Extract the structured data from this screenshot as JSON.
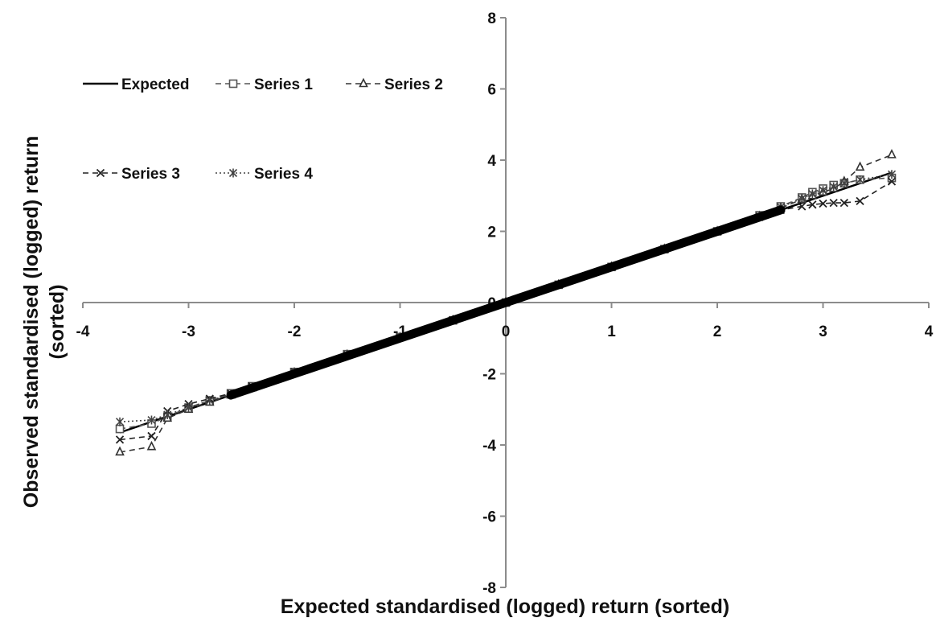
{
  "chart_data": {
    "type": "scatter",
    "title": "",
    "xlabel": "Expected standardised (logged) return (sorted)",
    "ylabel": [
      "Observed standardised (logged) return",
      "(sorted)"
    ],
    "xlim": [
      -4,
      4
    ],
    "ylim": [
      -8,
      8
    ],
    "x_ticks": [
      -4,
      -3,
      -2,
      -1,
      0,
      1,
      2,
      3,
      4
    ],
    "y_ticks": [
      -8,
      -6,
      -4,
      -2,
      0,
      2,
      4,
      6,
      8
    ],
    "grid": false,
    "legend_position": "top-left",
    "series": [
      {
        "name": "Expected",
        "line": "solid",
        "marker": "none",
        "color": "#000000",
        "x": [
          -3.65,
          3.65
        ],
        "y": [
          -3.65,
          3.65
        ]
      },
      {
        "name": "Series 1",
        "line": "dashed",
        "marker": "square",
        "color": "#555555",
        "x": [
          -3.65,
          -3.35,
          -3.2,
          -3.0,
          -2.8,
          -2.6,
          -2.4,
          -2.0,
          -1.5,
          -1.0,
          -0.5,
          0.0,
          0.5,
          1.0,
          1.5,
          2.0,
          2.4,
          2.6,
          2.8,
          2.9,
          3.0,
          3.1,
          3.2,
          3.35,
          3.65
        ],
        "y": [
          -3.55,
          -3.4,
          -3.2,
          -2.95,
          -2.75,
          -2.55,
          -2.35,
          -1.95,
          -1.45,
          -0.97,
          -0.5,
          0.0,
          0.5,
          1.0,
          1.5,
          2.0,
          2.45,
          2.7,
          2.95,
          3.1,
          3.2,
          3.3,
          3.35,
          3.45,
          3.5
        ]
      },
      {
        "name": "Series 2",
        "line": "dashed",
        "marker": "triangle",
        "color": "#333333",
        "x": [
          -3.65,
          -3.35,
          -3.2,
          -3.0,
          -2.8,
          -2.6,
          -2.4,
          -2.0,
          -1.5,
          -1.0,
          -0.5,
          0.0,
          0.5,
          1.0,
          1.5,
          2.0,
          2.4,
          2.6,
          2.8,
          2.9,
          3.0,
          3.1,
          3.2,
          3.35,
          3.65
        ],
        "y": [
          -4.2,
          -4.05,
          -3.25,
          -3.0,
          -2.8,
          -2.6,
          -2.4,
          -1.97,
          -1.47,
          -0.98,
          -0.5,
          0.0,
          0.5,
          1.0,
          1.5,
          2.0,
          2.42,
          2.65,
          2.9,
          3.0,
          3.1,
          3.2,
          3.4,
          3.8,
          4.15
        ]
      },
      {
        "name": "Series 3",
        "line": "dashed",
        "marker": "x",
        "color": "#222222",
        "x": [
          -3.65,
          -3.35,
          -3.2,
          -3.0,
          -2.8,
          -2.6,
          -2.4,
          -2.0,
          -1.5,
          -1.0,
          -0.5,
          0.0,
          0.5,
          1.0,
          1.5,
          2.0,
          2.4,
          2.6,
          2.8,
          2.9,
          3.0,
          3.1,
          3.2,
          3.35,
          3.65
        ],
        "y": [
          -3.85,
          -3.75,
          -3.05,
          -2.85,
          -2.7,
          -2.55,
          -2.35,
          -1.95,
          -1.47,
          -0.98,
          -0.5,
          0.0,
          0.5,
          1.0,
          1.5,
          2.0,
          2.4,
          2.6,
          2.7,
          2.75,
          2.78,
          2.8,
          2.8,
          2.85,
          3.4
        ]
      },
      {
        "name": "Series 4",
        "line": "dotted",
        "marker": "asterisk",
        "color": "#444444",
        "x": [
          -3.65,
          -3.35,
          -3.2,
          -3.0,
          -2.8,
          -2.6,
          -2.4,
          -2.0,
          -1.5,
          -1.0,
          -0.5,
          0.0,
          0.5,
          1.0,
          1.5,
          2.0,
          2.4,
          2.6,
          2.8,
          2.9,
          3.0,
          3.1,
          3.2,
          3.35,
          3.65
        ],
        "y": [
          -3.35,
          -3.3,
          -3.15,
          -2.95,
          -2.75,
          -2.58,
          -2.38,
          -1.96,
          -1.46,
          -0.97,
          -0.5,
          0.0,
          0.5,
          1.0,
          1.5,
          2.0,
          2.43,
          2.68,
          2.92,
          3.05,
          3.15,
          3.25,
          3.35,
          3.45,
          3.6
        ]
      }
    ]
  }
}
